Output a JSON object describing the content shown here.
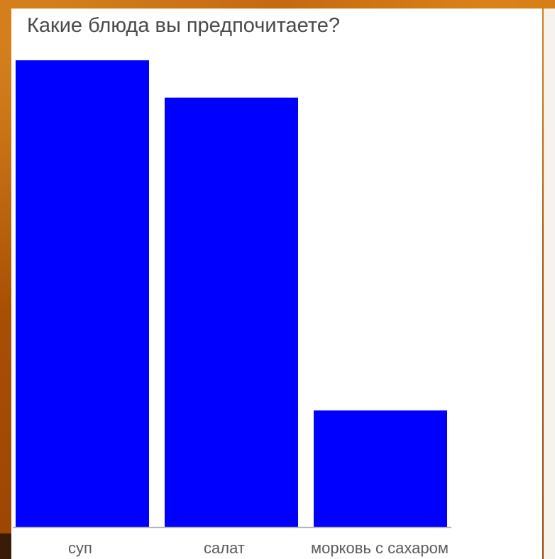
{
  "chart_data": {
    "type": "bar",
    "title": "Какие блюда вы предпочитаете?",
    "xlabel": "",
    "ylabel": "",
    "categories": [
      "суп",
      "салат",
      "морковь с сахаром"
    ],
    "values": [
      100,
      92,
      25
    ],
    "ylim": [
      0,
      100
    ],
    "grid": false,
    "legend": "none",
    "colors": {
      "bar": "#0000ff",
      "axis": "#b0b0b0",
      "text": "#4a4a4a"
    }
  }
}
